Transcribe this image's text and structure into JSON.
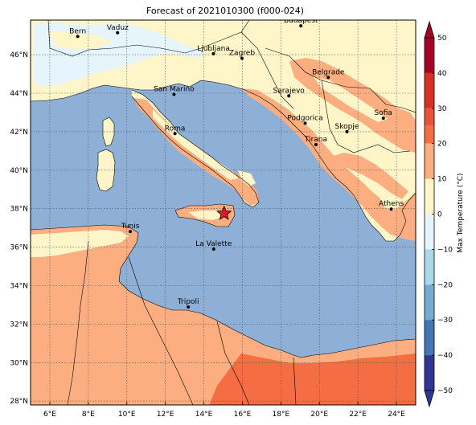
{
  "title": "Forecast of 2021010300 (f000-024)",
  "colorbar": {
    "label": "Max Temperature (°C)",
    "ticks": [
      50,
      40,
      30,
      20,
      10,
      0,
      -10,
      -20,
      -30,
      -40,
      -50
    ],
    "bands": [
      {
        "from": 40,
        "to": 50,
        "color": "#a50026"
      },
      {
        "from": 30,
        "to": 40,
        "color": "#d73027"
      },
      {
        "from": 25,
        "to": 30,
        "color": "#e8543a"
      },
      {
        "from": 20,
        "to": 25,
        "color": "#f46d43"
      },
      {
        "from": 10,
        "to": 20,
        "color": "#fdae80"
      },
      {
        "from": 0,
        "to": 10,
        "color": "#fef5c8"
      },
      {
        "from": -10,
        "to": 0,
        "color": "#e6f4fb"
      },
      {
        "from": -20,
        "to": -10,
        "color": "#abd9e9"
      },
      {
        "from": -30,
        "to": -20,
        "color": "#74add1"
      },
      {
        "from": -40,
        "to": -30,
        "color": "#4575b4"
      },
      {
        "from": -50,
        "to": -40,
        "color": "#313695"
      }
    ],
    "colors": {
      "sea": "#8fb0d6",
      "warm": "#fdae80",
      "hot": "#f46d43",
      "mild": "#fef5c8",
      "cold": "#e6f4fb"
    }
  },
  "axes": {
    "lon_range": [
      5,
      25
    ],
    "lat_range": [
      27.8,
      47.8
    ],
    "x_ticks": [
      {
        "v": 6,
        "t": "6°E"
      },
      {
        "v": 8,
        "t": "8°E"
      },
      {
        "v": 10,
        "t": "10°E"
      },
      {
        "v": 12,
        "t": "12°E"
      },
      {
        "v": 14,
        "t": "14°E"
      },
      {
        "v": 16,
        "t": "16°E"
      },
      {
        "v": 18,
        "t": "18°E"
      },
      {
        "v": 20,
        "t": "20°E"
      },
      {
        "v": 22,
        "t": "22°E"
      },
      {
        "v": 24,
        "t": "24°E"
      }
    ],
    "y_ticks": [
      {
        "v": 46,
        "t": "46°N"
      },
      {
        "v": 44,
        "t": "44°N"
      },
      {
        "v": 42,
        "t": "42°N"
      },
      {
        "v": 40,
        "t": "40°N"
      },
      {
        "v": 38,
        "t": "38°N"
      },
      {
        "v": 36,
        "t": "36°N"
      },
      {
        "v": 34,
        "t": "34°N"
      },
      {
        "v": 32,
        "t": "32°N"
      },
      {
        "v": 30,
        "t": "30°N"
      },
      {
        "v": 28,
        "t": "28°N"
      }
    ],
    "grid": true
  },
  "cities": [
    {
      "name": "Bern",
      "lon": 7.45,
      "lat": 46.95
    },
    {
      "name": "Vaduz",
      "lon": 9.52,
      "lat": 47.14
    },
    {
      "name": "Budapest",
      "lon": 19.04,
      "lat": 47.5
    },
    {
      "name": "Ljubljana",
      "lon": 14.5,
      "lat": 46.05
    },
    {
      "name": "Zagreb",
      "lon": 15.98,
      "lat": 45.81
    },
    {
      "name": "Belgrade",
      "lon": 20.46,
      "lat": 44.82
    },
    {
      "name": "San Marino",
      "lon": 12.45,
      "lat": 43.94
    },
    {
      "name": "Sarajevo",
      "lon": 18.41,
      "lat": 43.86
    },
    {
      "name": "Sofia",
      "lon": 23.32,
      "lat": 42.7
    },
    {
      "name": "Podgorica",
      "lon": 19.26,
      "lat": 42.44
    },
    {
      "name": "Skopje",
      "lon": 21.43,
      "lat": 42.0
    },
    {
      "name": "Roma",
      "lon": 12.5,
      "lat": 41.9
    },
    {
      "name": "Tirana",
      "lon": 19.82,
      "lat": 41.33
    },
    {
      "name": "Athens",
      "lon": 23.73,
      "lat": 37.98
    },
    {
      "name": "Tunis",
      "lon": 10.18,
      "lat": 36.81
    },
    {
      "name": "La Valette",
      "lon": 14.51,
      "lat": 35.9
    },
    {
      "name": "Tripoli",
      "lon": 13.19,
      "lat": 32.89
    }
  ],
  "marker": {
    "name": "star",
    "lon": 15.05,
    "lat": 37.75
  }
}
